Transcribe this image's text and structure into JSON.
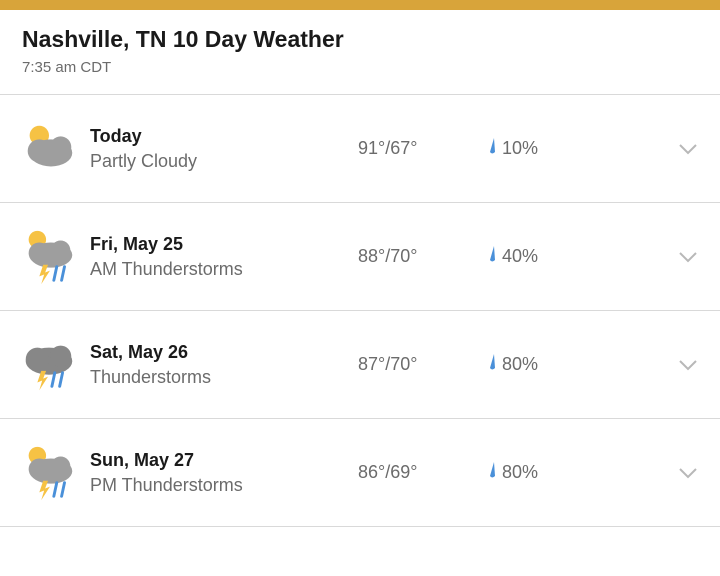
{
  "colors": {
    "topbar": "#d8a43a",
    "title_text": "#1a1a1a",
    "muted_text": "#6b6b6b",
    "divider": "#d9d9d9",
    "cloud": "#9e9e9e",
    "cloud_dark": "#878787",
    "sun": "#f6c244",
    "rain": "#4a90d9",
    "drop": "#4a90d9",
    "bolt": "#f6c244",
    "chevron": "#b8b8b8"
  },
  "header": {
    "title": "Nashville, TN 10 Day Weather",
    "timestamp": "7:35 am CDT"
  },
  "days": [
    {
      "icon": "partly-cloudy",
      "label": "Today",
      "condition": "Partly Cloudy",
      "high": "91°",
      "low": "67°",
      "precip": "10%"
    },
    {
      "icon": "sun-thunder",
      "label": "Fri, May 25",
      "condition": "AM Thunderstorms",
      "high": "88°",
      "low": "70°",
      "precip": "40%"
    },
    {
      "icon": "thunder",
      "label": "Sat, May 26",
      "condition": "Thunderstorms",
      "high": "87°",
      "low": "70°",
      "precip": "80%"
    },
    {
      "icon": "sun-thunder",
      "label": "Sun, May 27",
      "condition": "PM Thunderstorms",
      "high": "86°",
      "low": "69°",
      "precip": "80%"
    }
  ]
}
